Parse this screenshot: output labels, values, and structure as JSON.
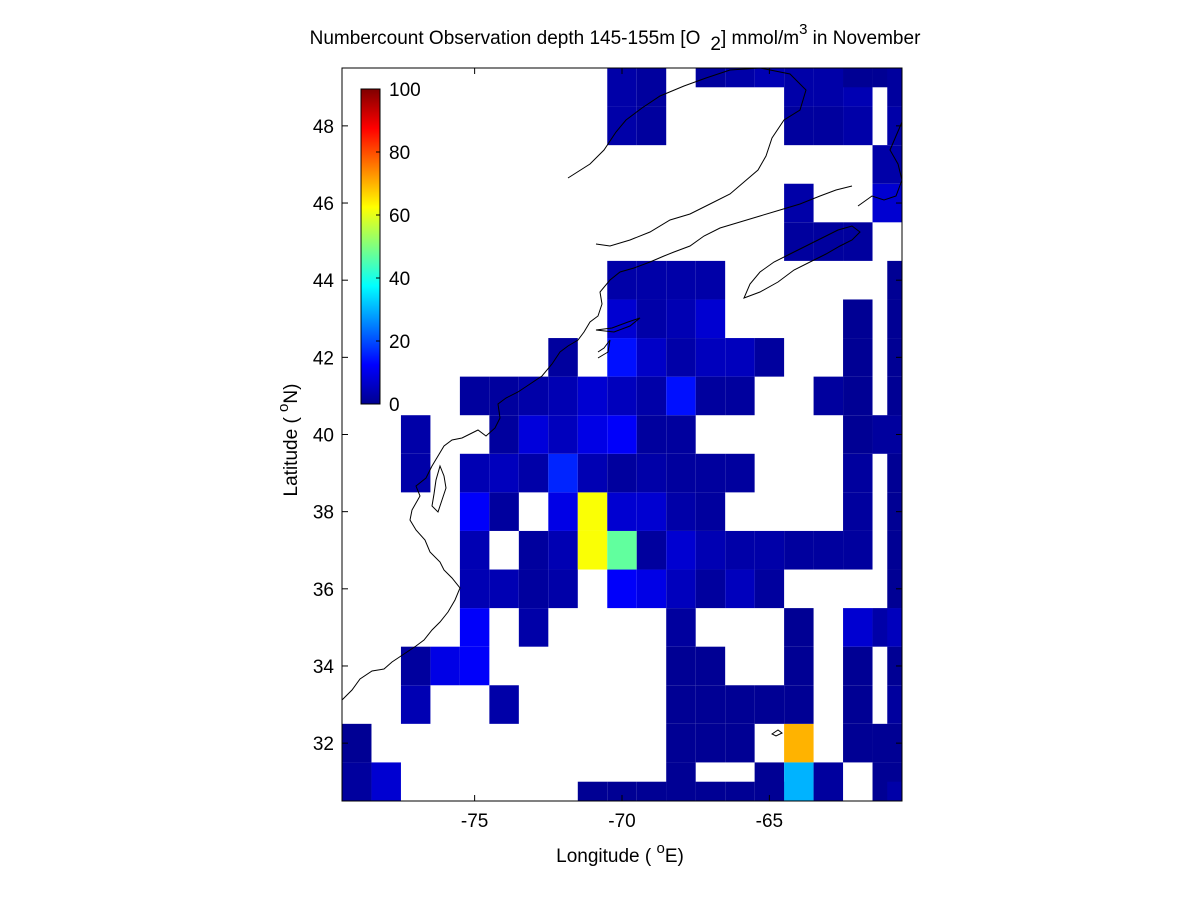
{
  "title": {
    "main": "Numbercount Observation depth 145-155m [O",
    "sub": "2",
    "unit": "] mmol/m",
    "sup": "3",
    "tail": " in November"
  },
  "xlabel": {
    "pre": "Longitude ( ",
    "deg": "o",
    "post": "E)"
  },
  "ylabel": {
    "pre": "Latitude ( ",
    "deg": "o",
    "post": "N)"
  },
  "chart_data": {
    "type": "heatmap",
    "colormap": "jet",
    "xlim": [
      -79.5,
      -60.5
    ],
    "ylim": [
      30.5,
      49.5
    ],
    "cell_size_deg": 1,
    "xticks": [
      -75,
      -70,
      -65
    ],
    "yticks": [
      32,
      34,
      36,
      38,
      40,
      42,
      44,
      46,
      48
    ],
    "colorbar": {
      "min": 0,
      "max": 100,
      "ticks": [
        0,
        20,
        40,
        60,
        80,
        100
      ],
      "placement": "upper-left inside axes"
    },
    "cells": [
      [
        -79,
        31,
        3
      ],
      [
        -79,
        32,
        2
      ],
      [
        -78,
        31,
        8
      ],
      [
        -77,
        33,
        5
      ],
      [
        -77,
        34,
        3
      ],
      [
        -76,
        34,
        10
      ],
      [
        -75,
        34,
        12
      ],
      [
        -75,
        35,
        12
      ],
      [
        -74,
        33,
        4
      ],
      [
        -73,
        35,
        4
      ],
      [
        -66,
        33,
        2
      ],
      [
        -66,
        32,
        2
      ],
      [
        -67,
        32,
        2
      ],
      [
        -67,
        33,
        2
      ],
      [
        -67,
        34,
        2
      ],
      [
        -68,
        31,
        2
      ],
      [
        -68,
        32,
        2
      ],
      [
        -68,
        33,
        2
      ],
      [
        -68,
        34,
        2
      ],
      [
        -68,
        35,
        3
      ],
      [
        -65,
        31,
        2
      ],
      [
        -65,
        33,
        2
      ],
      [
        -64,
        30.5,
        2
      ],
      [
        -69,
        30.5,
        2
      ],
      [
        -70,
        30.5,
        2
      ],
      [
        -71,
        30.5,
        2
      ],
      [
        -66,
        30.5,
        2
      ],
      [
        -67,
        30.5,
        2
      ],
      [
        -68,
        30.5,
        2
      ],
      [
        -64,
        32,
        70
      ],
      [
        -64,
        31,
        30
      ],
      [
        -63,
        31,
        3
      ],
      [
        -64,
        33,
        2
      ],
      [
        -64,
        34,
        2
      ],
      [
        -64,
        35,
        2
      ],
      [
        -61,
        31,
        2
      ],
      [
        -62,
        32,
        2
      ],
      [
        -61,
        32,
        2
      ],
      [
        -62,
        33,
        2
      ],
      [
        -62,
        34,
        2
      ],
      [
        -62,
        35,
        8
      ],
      [
        -61,
        35,
        4
      ],
      [
        -60.5,
        30.5,
        4
      ],
      [
        -60.5,
        33,
        3
      ],
      [
        -60.5,
        34,
        2
      ],
      [
        -60.5,
        35,
        6
      ],
      [
        -60.5,
        36,
        2
      ],
      [
        -75,
        36,
        5
      ],
      [
        -74,
        36,
        5
      ],
      [
        -73,
        36,
        3
      ],
      [
        -72,
        36,
        4
      ],
      [
        -70,
        36,
        12
      ],
      [
        -69,
        36,
        10
      ],
      [
        -68,
        36,
        6
      ],
      [
        -67,
        36,
        3
      ],
      [
        -66,
        36,
        6
      ],
      [
        -65,
        36,
        3
      ],
      [
        -75,
        37,
        5
      ],
      [
        -73,
        37,
        3
      ],
      [
        -72,
        37,
        5
      ],
      [
        -71,
        37,
        62
      ],
      [
        -70,
        37,
        47
      ],
      [
        -69,
        37,
        3
      ],
      [
        -68,
        37,
        8
      ],
      [
        -67,
        37,
        5
      ],
      [
        -66,
        37,
        4
      ],
      [
        -65,
        37,
        4
      ],
      [
        -64,
        37,
        3
      ],
      [
        -63,
        37,
        3
      ],
      [
        -75,
        38,
        12
      ],
      [
        -74,
        38,
        3
      ],
      [
        -72,
        38,
        10
      ],
      [
        -71,
        38,
        62
      ],
      [
        -70,
        38,
        8
      ],
      [
        -69,
        38,
        8
      ],
      [
        -68,
        38,
        4
      ],
      [
        -67,
        38,
        3
      ],
      [
        -75,
        39,
        5
      ],
      [
        -74,
        39,
        6
      ],
      [
        -73,
        39,
        4
      ],
      [
        -72,
        39,
        16
      ],
      [
        -71,
        39,
        5
      ],
      [
        -70,
        39,
        3
      ],
      [
        -69,
        39,
        4
      ],
      [
        -68,
        39,
        3
      ],
      [
        -67,
        39,
        3
      ],
      [
        -66,
        39,
        3
      ],
      [
        -62,
        39,
        3
      ],
      [
        -77,
        40,
        4
      ],
      [
        -74,
        40,
        3
      ],
      [
        -73,
        40,
        9
      ],
      [
        -72,
        40,
        6
      ],
      [
        -71,
        40,
        10
      ],
      [
        -70,
        40,
        12
      ],
      [
        -69,
        40,
        3
      ],
      [
        -68,
        40,
        3
      ],
      [
        -62,
        40,
        2
      ],
      [
        -61,
        40,
        3
      ],
      [
        -60.5,
        40,
        3
      ],
      [
        -77,
        39,
        4
      ],
      [
        -62,
        38,
        3
      ],
      [
        -62,
        37,
        3
      ],
      [
        -60.5,
        37,
        2
      ],
      [
        -60.5,
        38,
        2
      ],
      [
        -60.5,
        39,
        2
      ],
      [
        -75,
        41,
        3
      ],
      [
        -74,
        41,
        3
      ],
      [
        -73,
        41,
        4
      ],
      [
        -72,
        41,
        5
      ],
      [
        -71,
        41,
        8
      ],
      [
        -70,
        41,
        6
      ],
      [
        -69,
        41,
        4
      ],
      [
        -68,
        41,
        14
      ],
      [
        -67,
        41,
        3
      ],
      [
        -66,
        41,
        3
      ],
      [
        -63,
        41,
        3
      ],
      [
        -62,
        41,
        2
      ],
      [
        -60.5,
        41,
        2
      ],
      [
        -72,
        42,
        3
      ],
      [
        -70,
        42,
        14
      ],
      [
        -69,
        42,
        7
      ],
      [
        -68,
        42,
        4
      ],
      [
        -67,
        42,
        6
      ],
      [
        -66,
        42,
        6
      ],
      [
        -65,
        42,
        3
      ],
      [
        -62,
        42,
        2
      ],
      [
        -60.5,
        42,
        2
      ],
      [
        -62,
        43,
        2
      ],
      [
        -60.5,
        43,
        2
      ],
      [
        -60.5,
        44,
        2
      ],
      [
        -70,
        43,
        8
      ],
      [
        -69,
        43,
        4
      ],
      [
        -68,
        43,
        5
      ],
      [
        -67,
        43,
        8
      ],
      [
        -70,
        44,
        4
      ],
      [
        -69,
        44,
        4
      ],
      [
        -68,
        44,
        4
      ],
      [
        -67,
        44,
        4
      ],
      [
        -64,
        45,
        3
      ],
      [
        -63,
        45,
        3
      ],
      [
        -62,
        45,
        3
      ],
      [
        -64,
        46,
        4
      ],
      [
        -61,
        46,
        8
      ],
      [
        -61,
        47,
        4
      ],
      [
        -64,
        48,
        3
      ],
      [
        -63,
        48,
        3
      ],
      [
        -62,
        48,
        4
      ],
      [
        -64,
        49,
        4
      ],
      [
        -63,
        49,
        4
      ],
      [
        -62,
        49,
        5
      ],
      [
        -70,
        49,
        4
      ],
      [
        -69,
        49,
        3
      ],
      [
        -70,
        48,
        4
      ],
      [
        -69,
        48,
        3
      ],
      [
        -66,
        49.5,
        4
      ],
      [
        -67,
        49.5,
        3
      ],
      [
        -65,
        49.5,
        5
      ],
      [
        -62,
        49.5,
        2
      ],
      [
        -61,
        49.5,
        2
      ],
      [
        -60.5,
        49,
        3
      ],
      [
        -60.5,
        48,
        4
      ]
    ]
  }
}
